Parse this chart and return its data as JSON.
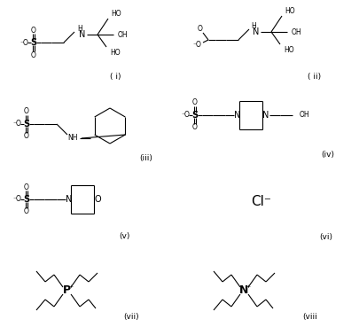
{
  "background_color": "#ffffff",
  "figure_width": 4.06,
  "figure_height": 3.69,
  "dpi": 100,
  "labels": {
    "i": "( i)",
    "ii": "( ii)",
    "iii": "(iii)",
    "iv": "(iv)",
    "v": "(v)",
    "vi": "(vi)",
    "vii": "(vii)",
    "viii": "(viii"
  },
  "font_size_label": 6.5,
  "font_size_atom": 5.5,
  "font_size_atom_large": 7,
  "font_size_cl": 11,
  "line_color": "#000000",
  "line_width": 0.8
}
